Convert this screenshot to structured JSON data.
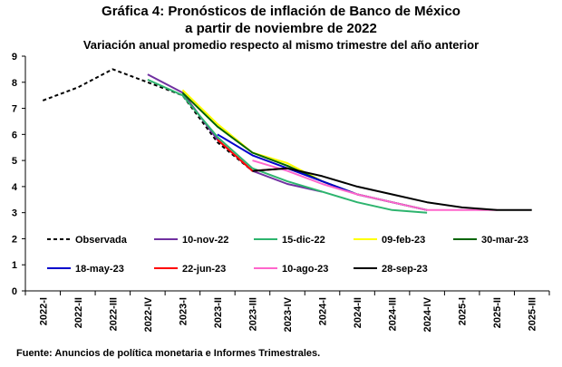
{
  "title": "Gráfica 4: Pronósticos de inflación de Banco de México",
  "title_line2": "a partir de noviembre de 2022",
  "subtitle": "Variación anual promedio respecto al mismo trimestre del año anterior",
  "source": "Fuente: Anuncios de política monetaria e Informes Trimestrales.",
  "chart_data": {
    "type": "line",
    "categories": [
      "2022-I",
      "2022-II",
      "2022-III",
      "2022-IV",
      "2023-I",
      "2023-II",
      "2023-III",
      "2023-IV",
      "2024-I",
      "2024-II",
      "2024-III",
      "2024-IV",
      "2025-I",
      "2025-II",
      "2025-III"
    ],
    "ylim": [
      0,
      9
    ],
    "yticks": [
      0,
      1,
      2,
      3,
      4,
      5,
      6,
      7,
      8,
      9
    ],
    "grid": false,
    "legend_position": "bottom",
    "series": [
      {
        "name": "Observada",
        "color": "#000000",
        "dashed": true,
        "values": [
          7.3,
          7.8,
          8.5,
          8.0,
          7.5,
          5.7,
          4.6,
          null,
          null,
          null,
          null,
          null,
          null,
          null,
          null
        ]
      },
      {
        "name": "10-nov-22",
        "color": "#7030A0",
        "dashed": false,
        "values": [
          null,
          null,
          null,
          8.3,
          7.6,
          5.8,
          4.6,
          4.1,
          3.8,
          null,
          null,
          null,
          null,
          null,
          null
        ]
      },
      {
        "name": "15-dic-22",
        "color": "#2DB46E",
        "dashed": false,
        "values": [
          null,
          null,
          null,
          8.1,
          7.5,
          5.9,
          4.7,
          4.2,
          3.8,
          3.4,
          3.1,
          3.0,
          null,
          null,
          null
        ]
      },
      {
        "name": "09-feb-23",
        "color": "#FFFF00",
        "dashed": false,
        "values": [
          null,
          null,
          null,
          null,
          7.7,
          6.4,
          5.3,
          4.9,
          4.2,
          3.7,
          3.4,
          3.1,
          null,
          null,
          null
        ]
      },
      {
        "name": "30-mar-23",
        "color": "#006400",
        "dashed": false,
        "values": [
          null,
          null,
          null,
          null,
          7.6,
          6.3,
          5.3,
          4.8,
          4.2,
          3.7,
          3.4,
          3.1,
          null,
          null,
          null
        ]
      },
      {
        "name": "18-may-23",
        "color": "#0000CC",
        "dashed": false,
        "values": [
          null,
          null,
          null,
          null,
          null,
          6.0,
          5.2,
          4.7,
          4.2,
          3.7,
          3.4,
          3.1,
          null,
          null,
          null
        ]
      },
      {
        "name": "22-jun-23",
        "color": "#FF0000",
        "dashed": false,
        "values": [
          null,
          null,
          null,
          null,
          null,
          5.8,
          4.6,
          4.7,
          null,
          null,
          null,
          null,
          null,
          null,
          null
        ]
      },
      {
        "name": "10-ago-23",
        "color": "#FF66CC",
        "dashed": false,
        "values": [
          null,
          null,
          null,
          null,
          null,
          null,
          5.0,
          4.6,
          4.1,
          3.7,
          3.4,
          3.1,
          3.1,
          3.1,
          null
        ]
      },
      {
        "name": "28-sep-23",
        "color": "#000000",
        "dashed": false,
        "values": [
          null,
          null,
          null,
          null,
          null,
          null,
          4.6,
          4.7,
          4.4,
          4.0,
          3.7,
          3.4,
          3.2,
          3.1,
          3.1
        ]
      }
    ]
  }
}
